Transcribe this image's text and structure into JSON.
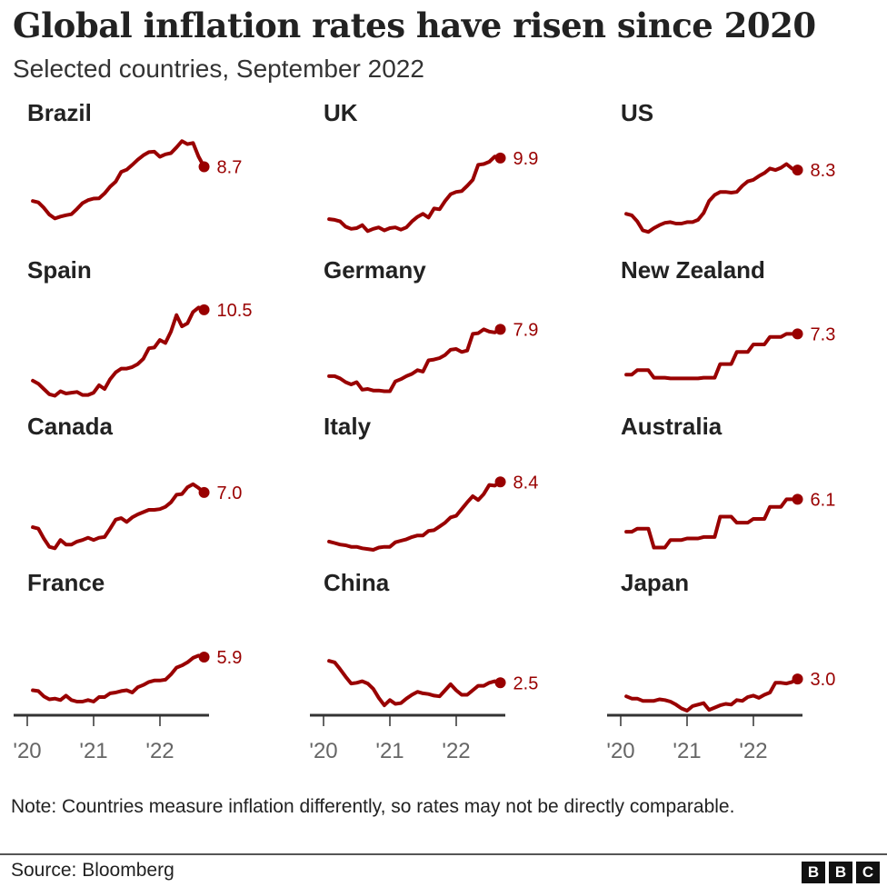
{
  "title": "Global inflation rates have risen since 2020",
  "subtitle": "Selected countries, September 2022",
  "note": "Note: Countries measure inflation differently, so rates may not be directly comparable.",
  "source": "Source: Bloomberg",
  "logo": [
    "B",
    "B",
    "C"
  ],
  "colors": {
    "line": "#990000",
    "axis": "#333333",
    "tick_label": "#666666"
  },
  "chart_data": {
    "type": "line",
    "x_start": "2020-01",
    "x_end": "2022-08",
    "frequency": "monthly",
    "x_tick_labels": [
      "'20",
      "'21",
      "'22"
    ],
    "ylim": [
      -2,
      12
    ],
    "grid": false,
    "panels": [
      {
        "name": "Brazil",
        "label": "8.7",
        "values": [
          4.19,
          4.01,
          3.3,
          2.4,
          1.88,
          2.13,
          2.31,
          2.44,
          3.14,
          3.92,
          4.31,
          4.52,
          4.56,
          5.2,
          6.1,
          6.76,
          8.06,
          8.35,
          8.99,
          9.68,
          10.25,
          10.67,
          10.74,
          10.06,
          10.38,
          10.54,
          11.3,
          12.13,
          11.73,
          11.89,
          10.07,
          8.73
        ]
      },
      {
        "name": "UK",
        "label": "9.9",
        "values": [
          1.8,
          1.7,
          1.5,
          0.8,
          0.5,
          0.6,
          1.0,
          0.2,
          0.5,
          0.7,
          0.3,
          0.6,
          0.7,
          0.4,
          0.7,
          1.5,
          2.1,
          2.5,
          2.0,
          3.2,
          3.1,
          4.2,
          5.1,
          5.4,
          5.5,
          6.2,
          7.0,
          9.0,
          9.1,
          9.4,
          10.1,
          9.9
        ]
      },
      {
        "name": "US",
        "label": "8.3",
        "values": [
          2.5,
          2.3,
          1.5,
          0.3,
          0.1,
          0.6,
          1.0,
          1.3,
          1.4,
          1.2,
          1.2,
          1.4,
          1.4,
          1.7,
          2.6,
          4.2,
          5.0,
          5.4,
          5.4,
          5.3,
          5.4,
          6.2,
          6.8,
          7.0,
          7.5,
          7.9,
          8.5,
          8.3,
          8.6,
          9.1,
          8.5,
          8.3
        ]
      },
      {
        "name": "Spain",
        "label": "10.5",
        "values": [
          1.1,
          0.7,
          0.0,
          -0.7,
          -0.9,
          -0.3,
          -0.6,
          -0.5,
          -0.4,
          -0.8,
          -0.8,
          -0.5,
          0.5,
          0.0,
          1.3,
          2.2,
          2.7,
          2.7,
          2.9,
          3.3,
          4.0,
          5.4,
          5.5,
          6.5,
          6.1,
          7.6,
          9.8,
          8.3,
          8.7,
          10.2,
          10.8,
          10.5
        ]
      },
      {
        "name": "Germany",
        "label": "7.9",
        "values": [
          1.7,
          1.7,
          1.4,
          0.9,
          0.6,
          0.9,
          -0.1,
          0.0,
          -0.2,
          -0.2,
          -0.3,
          -0.3,
          1.0,
          1.3,
          1.7,
          2.0,
          2.5,
          2.3,
          3.8,
          3.9,
          4.1,
          4.5,
          5.2,
          5.3,
          4.9,
          5.1,
          7.3,
          7.4,
          7.9,
          7.6,
          7.5,
          7.9
        ]
      },
      {
        "name": "New Zealand",
        "label": "7.3",
        "values": [
          1.9,
          1.9,
          2.5,
          2.5,
          2.5,
          1.5,
          1.5,
          1.5,
          1.4,
          1.4,
          1.4,
          1.4,
          1.4,
          1.4,
          1.5,
          1.5,
          1.5,
          3.3,
          3.3,
          3.3,
          4.9,
          4.9,
          4.9,
          5.9,
          5.9,
          5.9,
          6.9,
          6.9,
          6.9,
          7.3,
          7.3,
          7.3
        ]
      },
      {
        "name": "Canada",
        "label": "7.0",
        "values": [
          2.4,
          2.2,
          0.9,
          -0.2,
          -0.4,
          0.7,
          0.1,
          0.1,
          0.5,
          0.7,
          1.0,
          0.7,
          1.0,
          1.1,
          2.2,
          3.4,
          3.6,
          3.1,
          3.7,
          4.1,
          4.4,
          4.7,
          4.7,
          4.8,
          5.1,
          5.7,
          6.7,
          6.8,
          7.7,
          8.1,
          7.6,
          7.0
        ]
      },
      {
        "name": "Italy",
        "label": "8.4",
        "values": [
          0.5,
          0.3,
          0.1,
          0.0,
          -0.2,
          -0.2,
          -0.4,
          -0.5,
          -0.6,
          -0.3,
          -0.2,
          -0.2,
          0.4,
          0.6,
          0.8,
          1.1,
          1.3,
          1.3,
          1.9,
          2.0,
          2.5,
          3.0,
          3.7,
          3.9,
          4.8,
          5.7,
          6.5,
          6.0,
          6.8,
          8.0,
          7.9,
          8.4
        ]
      },
      {
        "name": "Australia",
        "label": "6.1",
        "values": [
          1.8,
          1.8,
          2.2,
          2.2,
          2.2,
          -0.3,
          -0.3,
          -0.3,
          0.7,
          0.7,
          0.7,
          0.9,
          0.9,
          0.9,
          1.1,
          1.1,
          1.1,
          3.8,
          3.8,
          3.8,
          3.0,
          3.0,
          3.0,
          3.5,
          3.5,
          3.5,
          5.1,
          5.1,
          5.1,
          6.1,
          6.1,
          6.1
        ]
      },
      {
        "name": "France",
        "label": "5.9",
        "values": [
          1.5,
          1.4,
          0.7,
          0.3,
          0.4,
          0.2,
          0.8,
          0.2,
          0.0,
          0.0,
          0.2,
          0.0,
          0.6,
          0.6,
          1.1,
          1.2,
          1.4,
          1.5,
          1.2,
          1.9,
          2.2,
          2.6,
          2.8,
          2.8,
          2.9,
          3.6,
          4.5,
          4.8,
          5.2,
          5.8,
          6.1,
          5.9
        ]
      },
      {
        "name": "China",
        "label": "2.5",
        "values": [
          5.4,
          5.2,
          4.3,
          3.3,
          2.4,
          2.5,
          2.7,
          2.4,
          1.7,
          0.5,
          -0.5,
          0.2,
          -0.3,
          -0.2,
          0.4,
          0.9,
          1.3,
          1.1,
          1.0,
          0.8,
          0.7,
          1.5,
          2.3,
          1.5,
          0.9,
          0.9,
          1.5,
          2.1,
          2.1,
          2.5,
          2.7,
          2.5
        ]
      },
      {
        "name": "Japan",
        "label": "3.0",
        "values": [
          0.7,
          0.4,
          0.4,
          0.1,
          0.1,
          0.1,
          0.3,
          0.2,
          0.0,
          -0.4,
          -0.9,
          -1.2,
          -0.6,
          -0.4,
          -0.2,
          -1.1,
          -0.8,
          -0.5,
          -0.3,
          -0.4,
          0.2,
          0.1,
          0.6,
          0.8,
          0.5,
          0.9,
          1.2,
          2.5,
          2.5,
          2.4,
          2.6,
          3.0
        ]
      }
    ]
  }
}
